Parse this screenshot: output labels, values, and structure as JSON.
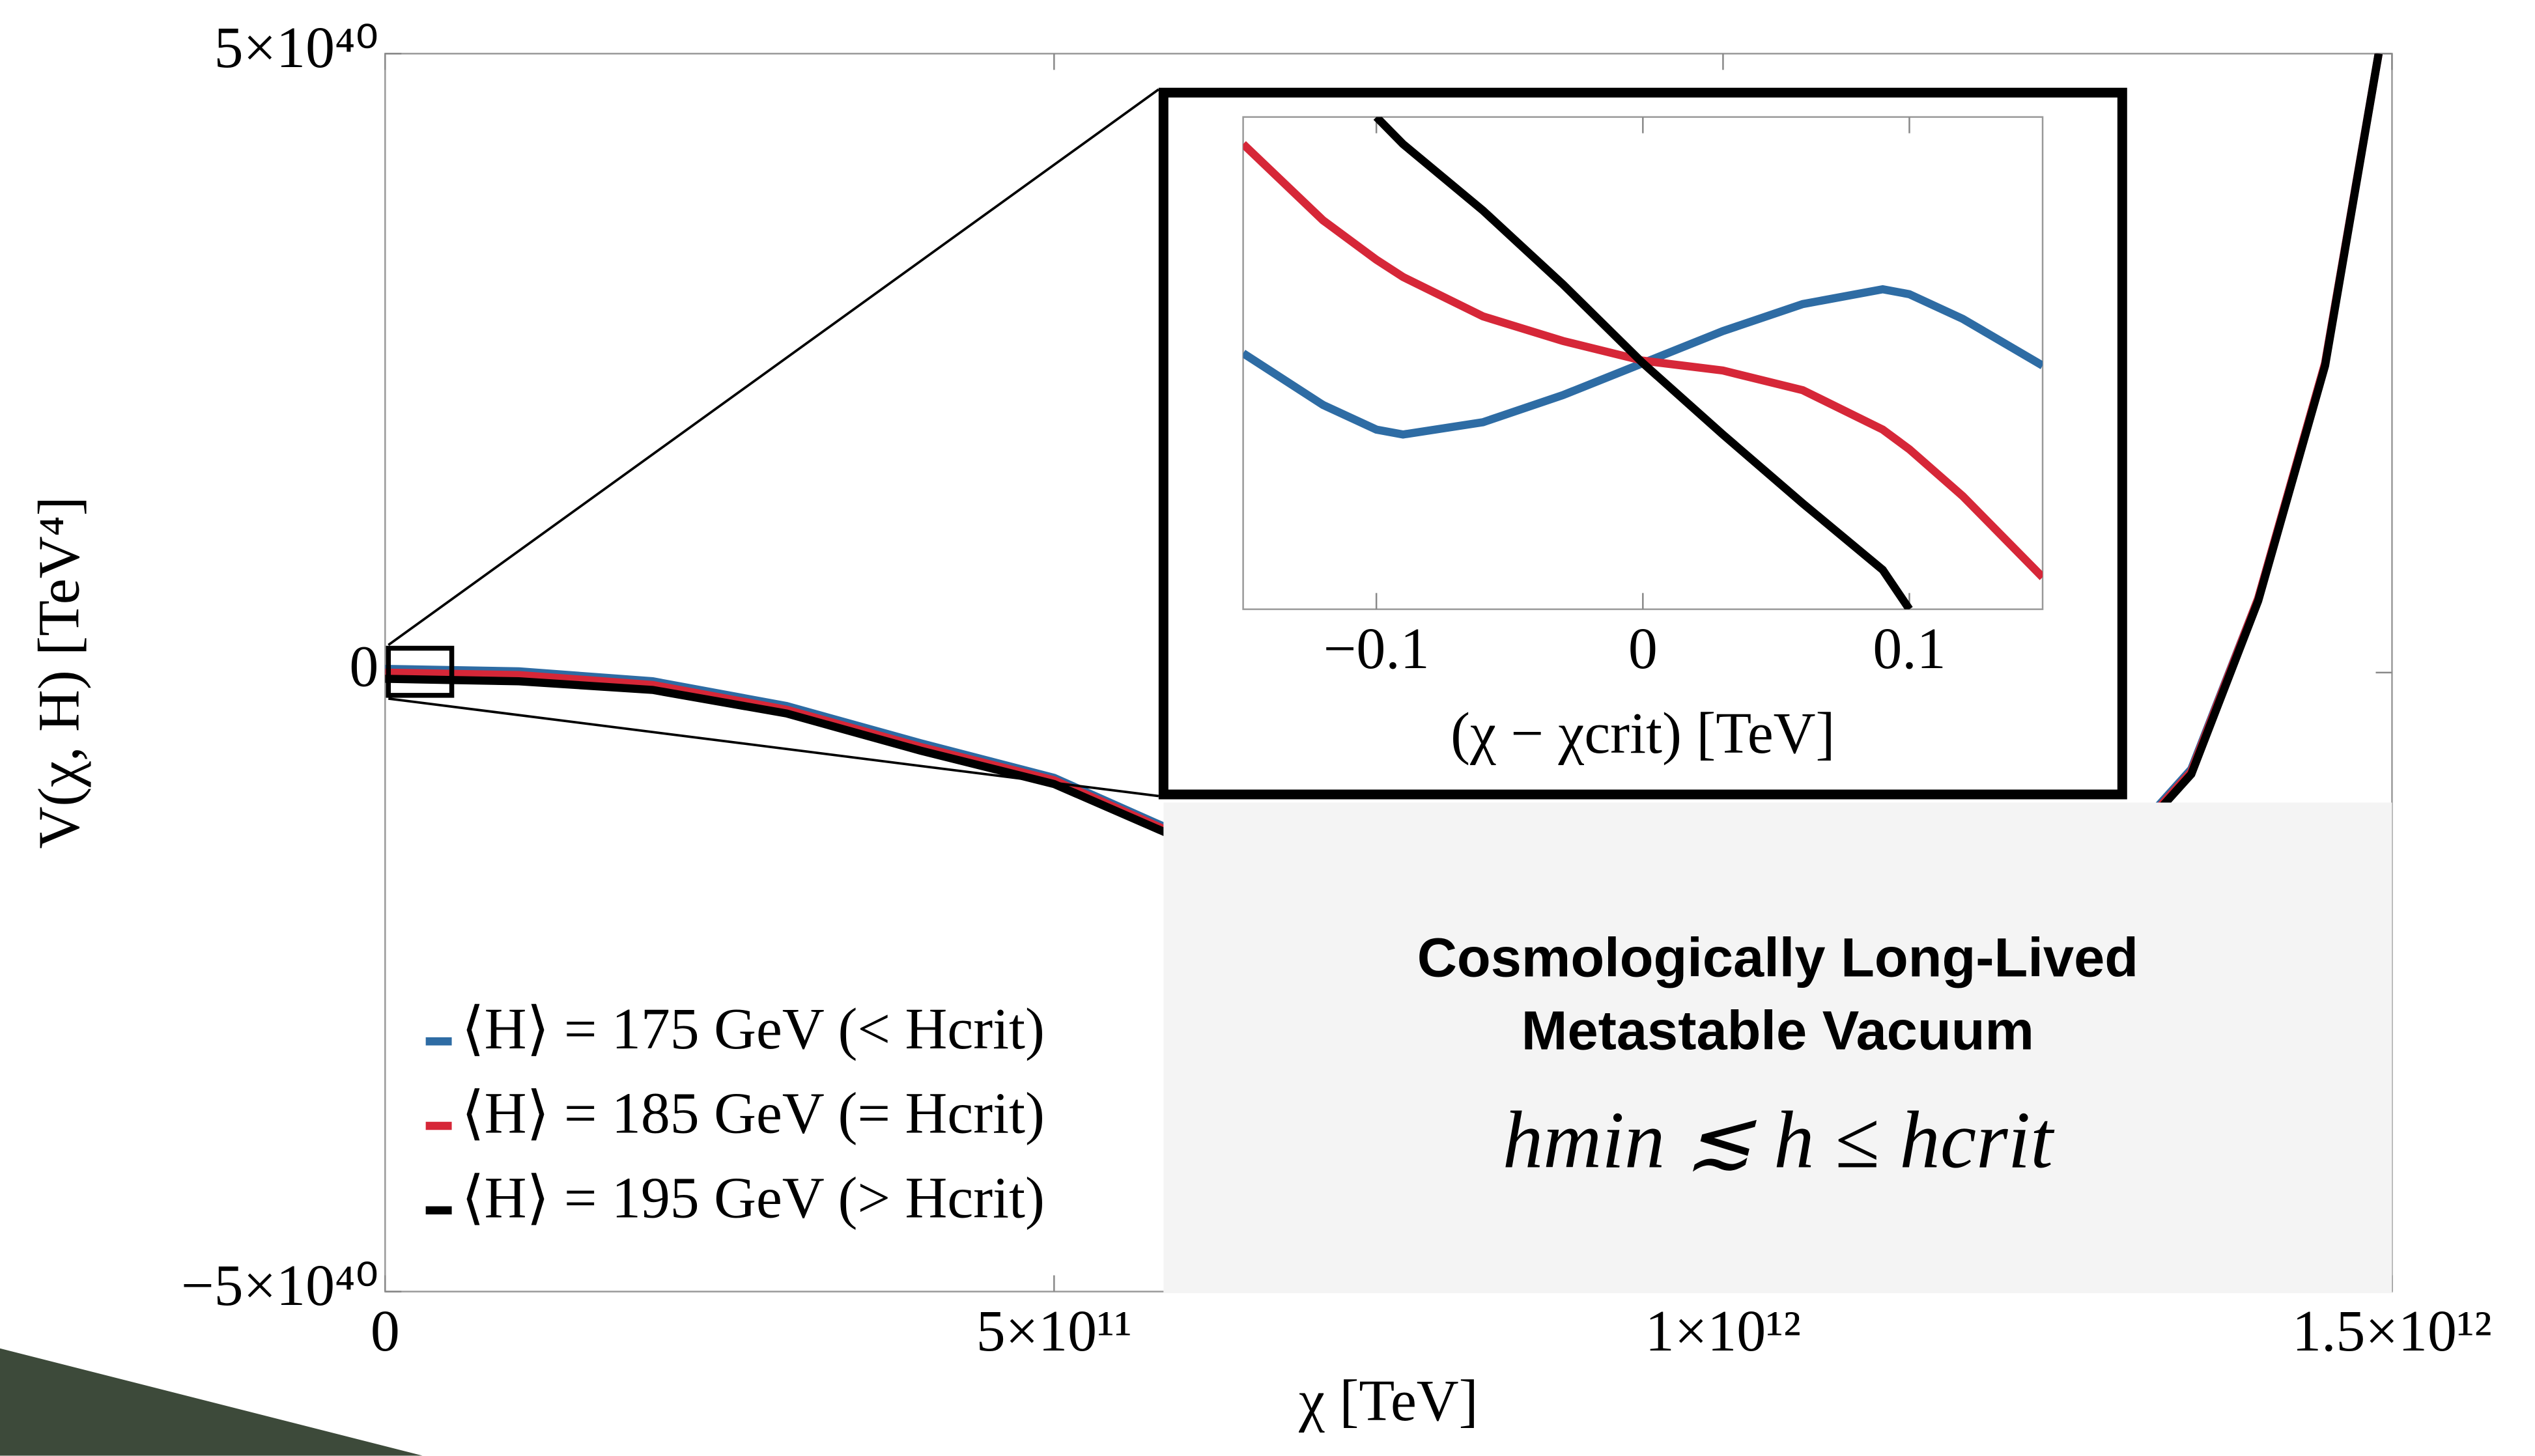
{
  "chart_data": [
    {
      "type": "line",
      "xlabel": "χ [TeV]",
      "ylabel": "V(χ, H) [TeV⁴]",
      "x": [
        0,
        100000000000.0,
        200000000000.0,
        300000000000.0,
        400000000000.0,
        500000000000.0,
        600000000000.0,
        700000000000.0,
        800000000000.0,
        900000000000.0,
        1000000000000.0,
        1100000000000.0,
        1200000000000.0,
        1300000000000.0,
        1350000000000.0,
        1400000000000.0,
        1450000000000.0,
        1490000000000.0
      ],
      "series": [
        {
          "name": "⟨H⟩ = 175 GeV (< Hcrit)",
          "color": "#2e6ca4",
          "values": [
            3e+38,
            1e+38,
            -7e+38,
            -2.7e+39,
            -5.7e+39,
            -8.5e+39,
            -1.33e+40,
            -1.78e+40,
            -2.08e+40,
            -2.28e+40,
            -2.38e+40,
            -2.28e+40,
            -1.98e+40,
            -1.38e+40,
            -7.8e+39,
            6e+39,
            2.5e+40,
            5e+40
          ]
        },
        {
          "name": "⟨H⟩ = 185 GeV (= Hcrit)",
          "color": "#d62738",
          "values": [
            0,
            -2e+38,
            -1e+39,
            -3e+39,
            -6e+39,
            -8.7e+39,
            -1.35e+40,
            -1.8e+40,
            -2.1e+40,
            -2.3e+40,
            -2.4e+40,
            -2.3e+40,
            -2e+40,
            -1.4e+40,
            -8e+39,
            6e+39,
            2.5e+40,
            5e+40
          ]
        },
        {
          "name": "⟨H⟩ = 195 GeV (> Hcrit)",
          "color": "#000000",
          "values": [
            -5e+38,
            -7e+38,
            -1.4e+39,
            -3.3e+39,
            -6.3e+39,
            -9e+39,
            -1.37e+40,
            -1.82e+40,
            -2.12e+40,
            -2.32e+40,
            -2.42e+40,
            -2.32e+40,
            -2.02e+40,
            -1.42e+40,
            -8.2e+39,
            5.8e+39,
            2.48e+40,
            5e+40
          ]
        }
      ],
      "xlim": [
        0,
        1500000000000.0
      ],
      "ylim": [
        -5e+40,
        5e+40
      ],
      "xticks": [
        0,
        {
          "value": 500000000000.0,
          "label": "5×10¹¹"
        },
        {
          "value": 1000000000000.0,
          "label": "1×10¹²"
        },
        {
          "value": 1500000000000.0,
          "label": "1.5×10¹²"
        }
      ],
      "yticks": [
        {
          "value": -5e+40,
          "label": "−5×10⁴⁰"
        },
        0,
        {
          "value": 5e+40,
          "label": "5×10⁴⁰"
        }
      ],
      "legend": "lower left",
      "annotations": [
        "Cosmologically Long-Lived",
        "Metastable Vacuum",
        "hmin ≲ h ≤ hcrit"
      ]
    },
    {
      "type": "line",
      "xlabel": "(χ − χcrit) [TeV]",
      "x": [
        -0.15,
        -0.12,
        -0.1,
        -0.09,
        -0.06,
        -0.03,
        0,
        0.03,
        0.06,
        0.09,
        0.1,
        0.12,
        0.15
      ],
      "series": [
        {
          "name": "⟨H⟩ = 175 GeV (< Hcrit)",
          "color": "#2e6ca4",
          "values": [
            0.04,
            -0.17,
            -0.27,
            -0.29,
            -0.24,
            -0.13,
            0,
            0.13,
            0.24,
            0.3,
            0.28,
            0.18,
            -0.01
          ]
        },
        {
          "name": "⟨H⟩ = 185 GeV (= Hcrit)",
          "color": "#d62738",
          "values": [
            0.89,
            0.58,
            0.42,
            0.35,
            0.19,
            0.09,
            0.01,
            -0.03,
            -0.11,
            -0.27,
            -0.35,
            -0.54,
            -0.87
          ]
        },
        {
          "name": "⟨H⟩ = 195 GeV (> Hcrit)",
          "color": "#000000",
          "values": [
            null,
            null,
            1.0,
            0.89,
            0.62,
            0.32,
            0,
            -0.29,
            -0.57,
            -0.84,
            -1.0,
            null,
            null
          ]
        }
      ],
      "xlim": [
        -0.15,
        0.15
      ],
      "ylim": [
        -1,
        1
      ],
      "xticks": [
        {
          "value": -0.1,
          "label": "−0.1"
        },
        0,
        0.1
      ]
    }
  ]
}
